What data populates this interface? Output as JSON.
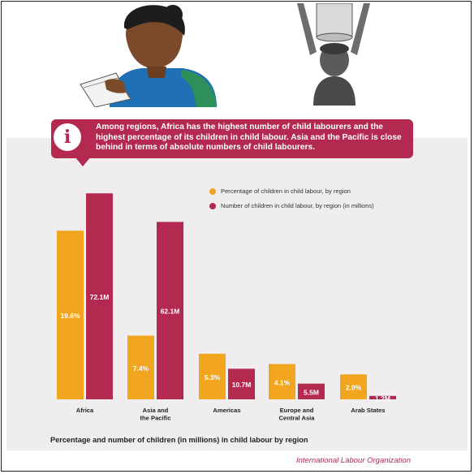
{
  "callout": {
    "text": "Among regions, Africa has the highest number of child labourers and the highest percentage of its children in child labour. Asia and the Pacific is close behind in terms of absolute numbers of child labourers."
  },
  "legend": {
    "percentage_label": "Percentage of children in child labour, by region",
    "number_label": "Number of children in child labour, by region (in millions)"
  },
  "caption": "Percentage and number of children (in millions) in child labour by region",
  "source": "International Labour Organization",
  "colors": {
    "percentage": "#f2a51f",
    "number": "#b3294f",
    "panel": "#efeded"
  },
  "icons": [
    "info-icon",
    "schoolgirl-illustration",
    "child-carrying-bucket-illustration"
  ],
  "chart_data": {
    "type": "bar",
    "title": "Percentage and number of children (in millions) in child labour by region",
    "xlabel": "",
    "ylabel": "",
    "grid": false,
    "legend_position": "top-right",
    "categories": [
      "Africa",
      "Asia and the Pacific",
      "Americas",
      "Europe and Central Asia",
      "Arab States"
    ],
    "series": [
      {
        "name": "Percentage of children in child labour, by region",
        "unit": "%",
        "values": [
          19.6,
          7.4,
          5.3,
          4.1,
          2.9
        ],
        "labels": [
          "19.6%",
          "7.4%",
          "5.3%",
          "4.1%",
          "2.9%"
        ],
        "color": "#f2a51f"
      },
      {
        "name": "Number of children in child labour, by region (in millions)",
        "unit": "M",
        "values": [
          72.1,
          62.1,
          10.7,
          5.5,
          1.2
        ],
        "labels": [
          "72.1M",
          "62.1M",
          "10.7M",
          "5.5M",
          "1.2M"
        ],
        "color": "#b3294f"
      }
    ],
    "category_labels": [
      [
        "Africa"
      ],
      [
        "Asia and",
        "the Pacific"
      ],
      [
        "Americas"
      ],
      [
        "Europe and",
        "Central Asia"
      ],
      [
        "Arab States"
      ]
    ]
  }
}
